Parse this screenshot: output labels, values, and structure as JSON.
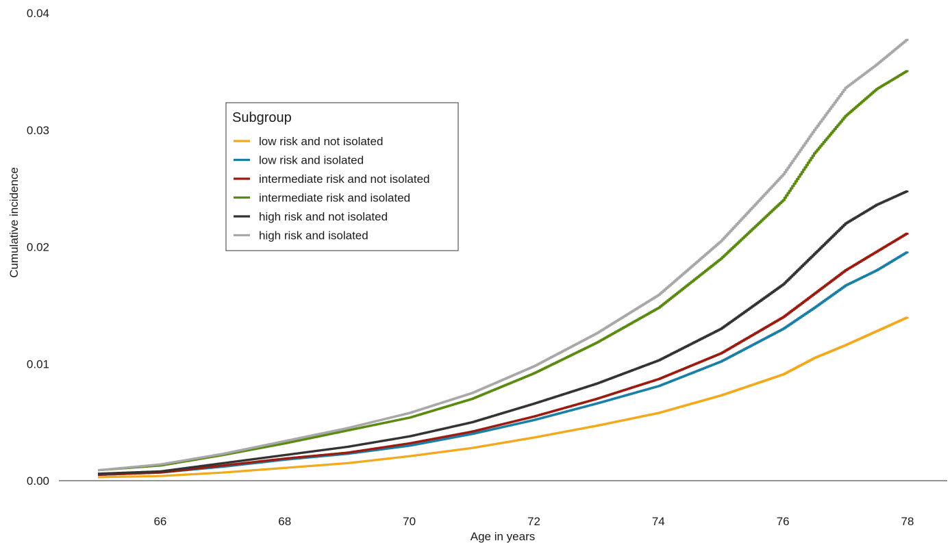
{
  "chart_data": {
    "type": "line",
    "title": "",
    "xlabel": "Age in years",
    "ylabel": "Cumulative incidence",
    "xlim": [
      65.0,
      78.0
    ],
    "ylim": [
      0.0,
      0.04
    ],
    "x_ticks": [
      66,
      68,
      70,
      72,
      74,
      76,
      78
    ],
    "x_tick_labels": [
      "66",
      "68",
      "70",
      "72",
      "74",
      "76",
      "78"
    ],
    "y_ticks": [
      0.0,
      0.01,
      0.02,
      0.03,
      0.04
    ],
    "y_tick_labels": [
      "0.00",
      "0.01",
      "0.02",
      "0.03",
      "0.04"
    ],
    "grid": false,
    "legend": {
      "title": "Subgroup",
      "placement": "upper-left"
    },
    "x": [
      65,
      66,
      67,
      68,
      69,
      70,
      71,
      72,
      73,
      74,
      75,
      76,
      76.5,
      77,
      77.5,
      78
    ],
    "series": [
      {
        "name": "low risk and not isolated",
        "color": "#F2A91E",
        "values": [
          0.0003,
          0.0004,
          0.0007,
          0.0011,
          0.0015,
          0.0021,
          0.0028,
          0.0037,
          0.0047,
          0.0058,
          0.0073,
          0.0091,
          0.0105,
          0.0116,
          0.0128,
          0.014
        ]
      },
      {
        "name": "low risk and isolated",
        "color": "#1A7FA6",
        "values": [
          0.0005,
          0.0007,
          0.0012,
          0.0018,
          0.0023,
          0.003,
          0.004,
          0.0052,
          0.0066,
          0.0081,
          0.0102,
          0.013,
          0.0148,
          0.0167,
          0.018,
          0.0196
        ]
      },
      {
        "name": "intermediate risk and not isolated",
        "color": "#9A1B10",
        "values": [
          0.0005,
          0.0007,
          0.0013,
          0.0019,
          0.0024,
          0.0032,
          0.0042,
          0.0055,
          0.007,
          0.0087,
          0.0109,
          0.014,
          0.016,
          0.018,
          0.0196,
          0.0212
        ]
      },
      {
        "name": "intermediate risk and isolated",
        "color": "#5A8A10",
        "values": [
          0.0009,
          0.0013,
          0.0022,
          0.0032,
          0.0043,
          0.0054,
          0.007,
          0.0092,
          0.0118,
          0.0148,
          0.019,
          0.024,
          0.028,
          0.0312,
          0.0335,
          0.0351
        ]
      },
      {
        "name": "high risk and not isolated",
        "color": "#333333",
        "values": [
          0.0006,
          0.0008,
          0.0015,
          0.0022,
          0.0029,
          0.0038,
          0.005,
          0.0066,
          0.0083,
          0.0103,
          0.013,
          0.0168,
          0.0194,
          0.022,
          0.0236,
          0.0248
        ]
      },
      {
        "name": "high risk and isolated",
        "color": "#A8A8A8",
        "values": [
          0.0009,
          0.0014,
          0.0023,
          0.0034,
          0.0045,
          0.0058,
          0.0075,
          0.0098,
          0.0126,
          0.0159,
          0.0205,
          0.0262,
          0.03,
          0.0336,
          0.0356,
          0.0378
        ]
      }
    ]
  }
}
